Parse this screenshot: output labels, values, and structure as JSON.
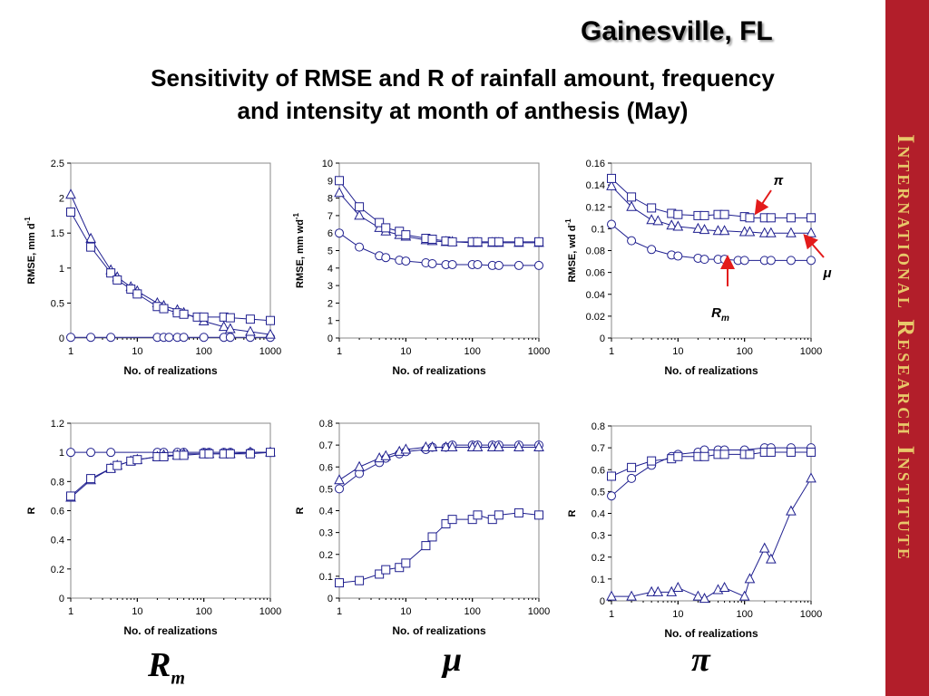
{
  "location": "Gainesville, FL",
  "title_line1": "Sensitivity of RMSE and R of rainfall amount, frequency",
  "title_line2": "and intensity at month of anthesis (May)",
  "sidebar_text": "International Research Institute",
  "bottom_labels": {
    "rm_main": "R",
    "rm_sub": "m",
    "mu": "μ",
    "pi": "π"
  },
  "colors": {
    "series": "#1f1f8f",
    "arrow": "#e31b1b",
    "sidebar": "#b21e2a",
    "sidebar_text": "#e8c86a"
  },
  "chart_data": [
    {
      "type": "scatter",
      "xscale": "log",
      "xlim": [
        1,
        1000
      ],
      "xticks": [
        "1",
        "10",
        "100",
        "1000"
      ],
      "ylim": [
        0,
        2.5
      ],
      "yticks": [
        "0",
        "0.5",
        "1",
        "1.5",
        "2",
        "2.5"
      ],
      "xlabel": "No. of realizations",
      "ylabel": "RMSE, mm d",
      "ylabel_sup": "-1",
      "series": [
        {
          "marker": "circle",
          "x": [
            1,
            2,
            4,
            20,
            25,
            30,
            40,
            50,
            100,
            200,
            250,
            500,
            1000
          ],
          "y": [
            0.01,
            0.01,
            0.01,
            0.01,
            0.01,
            0.01,
            0.01,
            0.01,
            0.01,
            0.01,
            0.01,
            0.01,
            0.01
          ]
        },
        {
          "marker": "triangle",
          "x": [
            1,
            2,
            4,
            5,
            8,
            10,
            20,
            25,
            40,
            50,
            100,
            200,
            250,
            500,
            1000
          ],
          "y": [
            2.05,
            1.42,
            0.97,
            0.87,
            0.73,
            0.67,
            0.5,
            0.46,
            0.4,
            0.36,
            0.24,
            0.16,
            0.13,
            0.09,
            0.05
          ]
        },
        {
          "marker": "square",
          "x": [
            1,
            2,
            4,
            5,
            8,
            10,
            20,
            25,
            40,
            50,
            80,
            100,
            200,
            250,
            500,
            1000
          ],
          "y": [
            1.8,
            1.3,
            0.93,
            0.83,
            0.7,
            0.63,
            0.45,
            0.42,
            0.36,
            0.34,
            0.3,
            0.3,
            0.3,
            0.29,
            0.27,
            0.25
          ]
        }
      ]
    },
    {
      "type": "scatter",
      "xscale": "log",
      "xlim": [
        1,
        1000
      ],
      "xticks": [
        "1",
        "10",
        "100",
        "1000"
      ],
      "ylim": [
        0,
        10
      ],
      "yticks": [
        "0",
        "1",
        "2",
        "3",
        "4",
        "5",
        "6",
        "7",
        "8",
        "9",
        "10"
      ],
      "xlabel": "No. of realizations",
      "ylabel": "RMSE, mm wd",
      "ylabel_sup": "-1",
      "series": [
        {
          "marker": "circle",
          "x": [
            1,
            2,
            4,
            5,
            8,
            10,
            20,
            25,
            40,
            50,
            100,
            120,
            200,
            250,
            500,
            1000
          ],
          "y": [
            6.0,
            5.2,
            4.7,
            4.6,
            4.45,
            4.4,
            4.3,
            4.25,
            4.2,
            4.2,
            4.2,
            4.2,
            4.15,
            4.15,
            4.15,
            4.15
          ]
        },
        {
          "marker": "triangle",
          "x": [
            1,
            2,
            4,
            5,
            8,
            10,
            20,
            25,
            40,
            50,
            100,
            120,
            200,
            250,
            500,
            1000
          ],
          "y": [
            8.3,
            7.0,
            6.3,
            6.1,
            5.9,
            5.8,
            5.6,
            5.55,
            5.5,
            5.5,
            5.45,
            5.45,
            5.45,
            5.45,
            5.45,
            5.45
          ]
        },
        {
          "marker": "square",
          "x": [
            1,
            2,
            4,
            5,
            8,
            10,
            20,
            25,
            40,
            50,
            100,
            120,
            200,
            250,
            500,
            1000
          ],
          "y": [
            9.0,
            7.5,
            6.6,
            6.3,
            6.1,
            5.9,
            5.7,
            5.65,
            5.55,
            5.5,
            5.5,
            5.5,
            5.5,
            5.5,
            5.5,
            5.5
          ]
        }
      ]
    },
    {
      "type": "scatter",
      "xscale": "log",
      "xlim": [
        1,
        1000
      ],
      "xticks": [
        "1",
        "10",
        "100",
        "1000"
      ],
      "ylim": [
        0,
        0.16
      ],
      "yticks": [
        "0",
        "0.02",
        "0.04",
        "0.06",
        "0.08",
        "0.1",
        "0.12",
        "0.14",
        "0.16"
      ],
      "xlabel": "No. of realizations",
      "ylabel": "RMSE, wd d",
      "ylabel_sup": "-1",
      "annotations": [
        {
          "text": "π",
          "x": 130,
          "y": 0.141
        },
        {
          "text": "μ",
          "x": 1400,
          "y": 0.06
        },
        {
          "text": "R",
          "sub": "m",
          "x": 60,
          "y": 0.024
        }
      ],
      "series": [
        {
          "marker": "circle",
          "x": [
            1,
            2,
            4,
            8,
            10,
            20,
            25,
            40,
            50,
            80,
            100,
            200,
            250,
            500,
            1000
          ],
          "y": [
            0.104,
            0.089,
            0.081,
            0.076,
            0.075,
            0.073,
            0.072,
            0.072,
            0.072,
            0.071,
            0.071,
            0.071,
            0.071,
            0.071,
            0.071
          ]
        },
        {
          "marker": "triangle",
          "x": [
            1,
            2,
            4,
            5,
            8,
            10,
            20,
            25,
            40,
            50,
            100,
            120,
            200,
            250,
            500,
            1000
          ],
          "y": [
            0.139,
            0.12,
            0.108,
            0.107,
            0.103,
            0.102,
            0.1,
            0.099,
            0.098,
            0.098,
            0.097,
            0.097,
            0.096,
            0.096,
            0.096,
            0.096
          ]
        },
        {
          "marker": "square",
          "x": [
            1,
            2,
            4,
            8,
            10,
            20,
            25,
            40,
            50,
            100,
            120,
            200,
            250,
            500,
            1000
          ],
          "y": [
            0.146,
            0.129,
            0.119,
            0.114,
            0.113,
            0.112,
            0.112,
            0.113,
            0.113,
            0.111,
            0.11,
            0.11,
            0.11,
            0.11,
            0.11
          ]
        }
      ]
    },
    {
      "type": "scatter",
      "xscale": "log",
      "xlim": [
        1,
        1000
      ],
      "xticks": [
        "1",
        "10",
        "100",
        "1000"
      ],
      "ylim": [
        0,
        1.2
      ],
      "yticks": [
        "0",
        "0.2",
        "0.4",
        "0.6",
        "0.8",
        "1",
        "1.2"
      ],
      "xlabel": "No. of realizations",
      "ylabel": "R",
      "series": [
        {
          "marker": "circle",
          "x": [
            1,
            2,
            4,
            20,
            25,
            40,
            50,
            100,
            120,
            200,
            250,
            500,
            1000
          ],
          "y": [
            1.0,
            1.0,
            1.0,
            1.0,
            1.0,
            1.0,
            1.0,
            1.0,
            1.0,
            1.0,
            1.0,
            1.0,
            1.0
          ]
        },
        {
          "marker": "triangle",
          "x": [
            1,
            2,
            4,
            5,
            8,
            10,
            20,
            25,
            40,
            50,
            100,
            120,
            200,
            250,
            500,
            1000
          ],
          "y": [
            0.69,
            0.81,
            0.89,
            0.91,
            0.94,
            0.95,
            0.97,
            0.98,
            0.98,
            0.99,
            0.99,
            0.99,
            0.99,
            0.99,
            1.0,
            1.0
          ]
        },
        {
          "marker": "square",
          "x": [
            1,
            2,
            4,
            5,
            8,
            10,
            20,
            25,
            40,
            50,
            100,
            120,
            200,
            250,
            500,
            1000
          ],
          "y": [
            0.7,
            0.82,
            0.89,
            0.91,
            0.94,
            0.95,
            0.97,
            0.97,
            0.98,
            0.98,
            0.99,
            0.99,
            0.99,
            0.99,
            0.99,
            1.0
          ]
        }
      ]
    },
    {
      "type": "scatter",
      "xscale": "log",
      "xlim": [
        1,
        1000
      ],
      "xticks": [
        "1",
        "10",
        "100",
        "1000"
      ],
      "ylim": [
        0,
        0.8
      ],
      "yticks": [
        "0",
        "0.1",
        "0.2",
        "0.3",
        "0.4",
        "0.5",
        "0.6",
        "0.7",
        "0.8"
      ],
      "xlabel": "No. of realizations",
      "ylabel": "R",
      "series": [
        {
          "marker": "circle",
          "x": [
            1,
            2,
            4,
            5,
            8,
            10,
            20,
            25,
            40,
            50,
            100,
            120,
            200,
            250,
            500,
            1000
          ],
          "y": [
            0.5,
            0.57,
            0.62,
            0.64,
            0.66,
            0.67,
            0.68,
            0.69,
            0.69,
            0.7,
            0.7,
            0.7,
            0.7,
            0.7,
            0.7,
            0.7
          ]
        },
        {
          "marker": "triangle",
          "x": [
            1,
            2,
            4,
            5,
            8,
            10,
            20,
            25,
            40,
            50,
            100,
            120,
            200,
            250,
            500,
            1000
          ],
          "y": [
            0.54,
            0.6,
            0.64,
            0.65,
            0.67,
            0.68,
            0.69,
            0.69,
            0.69,
            0.69,
            0.69,
            0.69,
            0.69,
            0.69,
            0.69,
            0.69
          ]
        },
        {
          "marker": "square",
          "x": [
            1,
            2,
            4,
            5,
            8,
            10,
            20,
            25,
            40,
            50,
            100,
            120,
            200,
            250,
            500,
            1000
          ],
          "y": [
            0.07,
            0.08,
            0.11,
            0.13,
            0.14,
            0.16,
            0.24,
            0.28,
            0.34,
            0.36,
            0.36,
            0.38,
            0.36,
            0.38,
            0.39,
            0.38
          ]
        }
      ]
    },
    {
      "type": "scatter",
      "xscale": "log",
      "xlim": [
        1,
        1000
      ],
      "xticks": [
        "1",
        "10",
        "100",
        "1000"
      ],
      "ylim": [
        0,
        0.8
      ],
      "yticks": [
        "0",
        "0.1",
        "0.2",
        "0.3",
        "0.4",
        "0.5",
        "0.6",
        "0.7",
        "0.8"
      ],
      "xlabel": "No. of realizations",
      "ylabel": "R",
      "series": [
        {
          "marker": "circle",
          "x": [
            1,
            2,
            4,
            8,
            10,
            20,
            25,
            40,
            50,
            100,
            200,
            250,
            500,
            1000
          ],
          "y": [
            0.48,
            0.56,
            0.62,
            0.66,
            0.67,
            0.68,
            0.69,
            0.69,
            0.69,
            0.69,
            0.7,
            0.7,
            0.7,
            0.7
          ]
        },
        {
          "marker": "triangle",
          "x": [
            1,
            2,
            4,
            5,
            8,
            10,
            20,
            25,
            40,
            50,
            100,
            120,
            200,
            250,
            500,
            1000
          ],
          "y": [
            0.02,
            0.02,
            0.04,
            0.04,
            0.04,
            0.06,
            0.02,
            0.01,
            0.05,
            0.06,
            0.02,
            0.1,
            0.24,
            0.19,
            0.41,
            0.56
          ]
        },
        {
          "marker": "square",
          "x": [
            1,
            2,
            4,
            8,
            10,
            20,
            25,
            40,
            50,
            100,
            120,
            200,
            250,
            500,
            1000
          ],
          "y": [
            0.57,
            0.61,
            0.64,
            0.65,
            0.66,
            0.66,
            0.66,
            0.67,
            0.67,
            0.67,
            0.67,
            0.68,
            0.68,
            0.68,
            0.68
          ]
        }
      ]
    }
  ]
}
